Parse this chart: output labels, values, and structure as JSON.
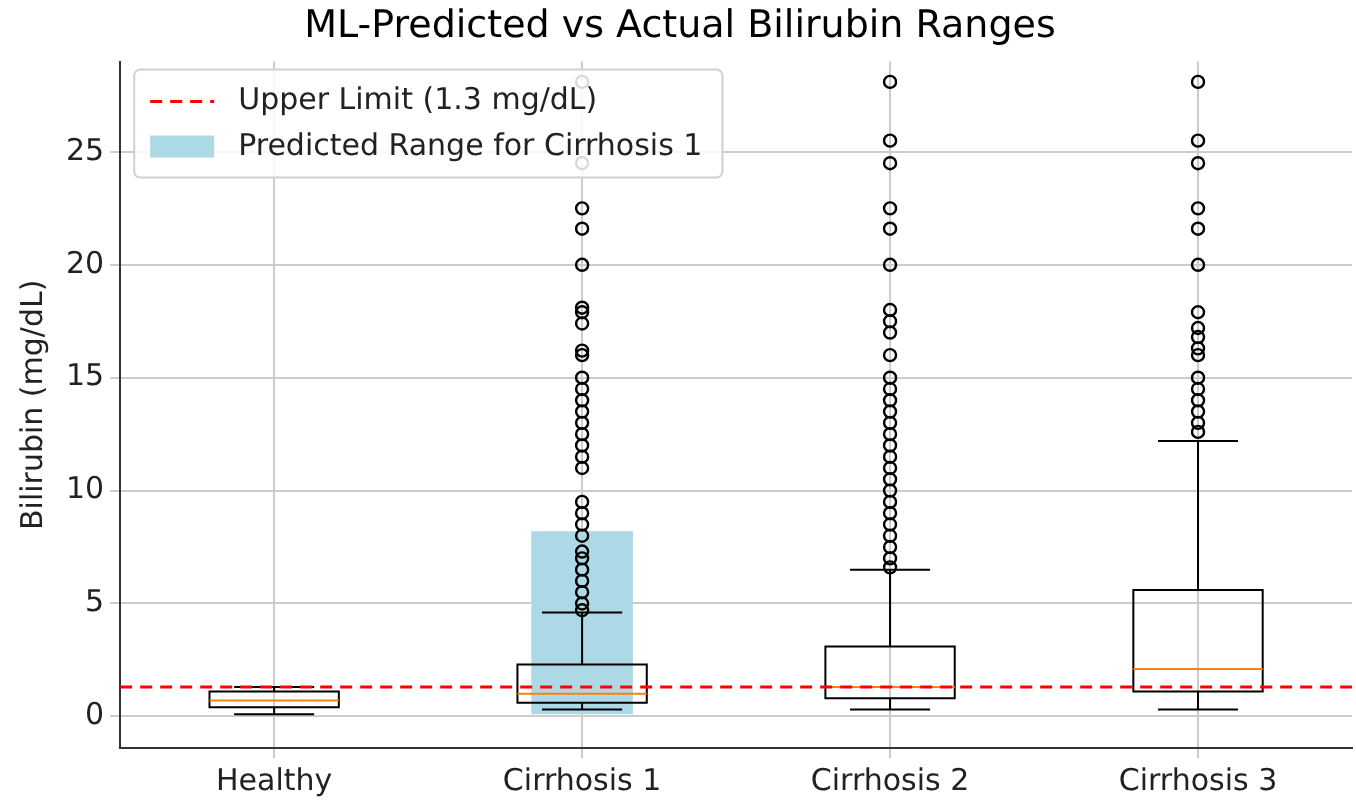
{
  "chart_data": {
    "type": "box",
    "title": "ML-Predicted vs Actual Bilirubin Ranges",
    "ylabel": "Bilirubin (mg/dL)",
    "categories": [
      "Healthy",
      "Cirrhosis 1",
      "Cirrhosis 2",
      "Cirrhosis 3"
    ],
    "boxes": [
      {
        "low": 0.1,
        "q1": 0.4,
        "median": 0.7,
        "q3": 1.1,
        "high": 1.3
      },
      {
        "low": 0.3,
        "q1": 0.6,
        "median": 1.0,
        "q3": 2.3,
        "high": 4.6,
        "outliers": [
          4.7,
          5.0,
          5.5,
          6.0,
          6.5,
          7.0,
          7.3,
          8.0,
          8.5,
          9.0,
          9.5,
          11.0,
          11.5,
          12.0,
          12.5,
          13.0,
          13.5,
          14.0,
          14.5,
          15.0,
          16.0,
          16.2,
          17.4,
          17.9,
          18.1,
          20.0,
          21.6,
          22.5,
          24.5,
          28.1
        ]
      },
      {
        "low": 0.3,
        "q1": 0.8,
        "median": 1.3,
        "q3": 3.1,
        "high": 6.5,
        "outliers": [
          6.6,
          7.0,
          7.5,
          8.0,
          8.5,
          9.0,
          9.5,
          10.0,
          10.5,
          11.0,
          11.5,
          12.0,
          12.5,
          13.0,
          13.5,
          14.0,
          14.5,
          15.0,
          16.0,
          17.0,
          17.5,
          18.0,
          20.0,
          21.6,
          22.5,
          24.5,
          25.5,
          28.1
        ]
      },
      {
        "low": 0.3,
        "q1": 1.1,
        "median": 2.1,
        "q3": 5.6,
        "high": 12.2,
        "outliers": [
          12.6,
          13.0,
          13.5,
          14.0,
          14.5,
          15.0,
          16.0,
          16.3,
          16.8,
          17.2,
          17.9,
          20.0,
          21.6,
          22.5,
          24.5,
          25.5,
          28.1
        ]
      }
    ],
    "series": [
      {
        "type": "bar",
        "name": "Predicted Range for Cirrhosis 1",
        "color": "#add8e6",
        "values": [
          null,
          8.1,
          null,
          null
        ],
        "base": [
          null,
          0.1,
          null,
          null
        ]
      }
    ],
    "ref_lines": [
      {
        "axis": "y",
        "value": 1.3,
        "label": "Upper Limit (1.3 mg/dL)",
        "color": "#ff0000",
        "line_style": "dashed"
      }
    ],
    "ylim": [
      -1.4,
      29
    ],
    "yticks": [
      0,
      5,
      10,
      15,
      20,
      25
    ],
    "grid": true,
    "legend": "top left"
  }
}
